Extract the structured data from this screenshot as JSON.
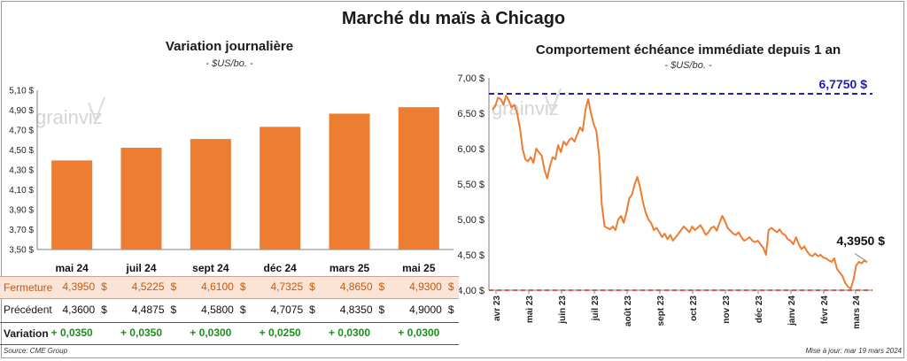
{
  "title": "Marché du maïs à Chicago",
  "left": {
    "title": "Variation journalière",
    "unit": "- $US/bo. -",
    "watermark": "grainviz"
  },
  "right": {
    "title": "Comportement  échéance immédiate depuis 1 an",
    "unit": "- $US/bo. -",
    "watermark": "grainviz"
  },
  "table": {
    "fermeture_label": "Fermeture",
    "precedent_label": "Précédent",
    "variation_label": "Variation",
    "dollar": "$",
    "fermeture": [
      "4,3950",
      "4,5225",
      "4,6100",
      "4,7325",
      "4,8650",
      "4,9300"
    ],
    "precedent": [
      "4,3600",
      "4,4875",
      "4,5800",
      "4,7075",
      "4,8350",
      "4,9000"
    ],
    "variation": [
      "+ 0,0350",
      "+ 0,0350",
      "+ 0,0300",
      "+ 0,0250",
      "+ 0,0300",
      "+ 0,0300"
    ]
  },
  "footer": {
    "source": "Source: CME Group",
    "update": "Mise à jour: mar 19 mars 2024"
  },
  "colors": {
    "bar": "#ED7D31",
    "line": "#ED7D31",
    "max_line": "#1F1FB4",
    "min_line": "#D42020",
    "variation_positive": "#1E8C1E",
    "fermeture_bg": "#FBE3D6",
    "fermeture_text": "#C55A11"
  },
  "chart_data": [
    {
      "type": "bar",
      "title": "Variation journalière",
      "ylabel": "- $US/bo. -",
      "categories": [
        "mai 24",
        "juil 24",
        "sept 24",
        "déc 24",
        "mars 25",
        "mai 25"
      ],
      "values": [
        4.395,
        4.5225,
        4.61,
        4.7325,
        4.865,
        4.93
      ],
      "ylim": [
        3.5,
        5.1
      ],
      "yticks": [
        "3,50 $",
        "3,70 $",
        "3,90 $",
        "4,10 $",
        "4,30 $",
        "4,50 $",
        "4,70 $",
        "4,90 $",
        "5,10 $"
      ],
      "grid": false
    },
    {
      "type": "line",
      "title": "Comportement  échéance immédiate depuis 1 an",
      "ylabel": "- $US/bo. -",
      "ylim": [
        4.0,
        7.0
      ],
      "yticks": [
        "4,00 $",
        "4,50 $",
        "5,00 $",
        "5,50 $",
        "6,00 $",
        "6,50 $",
        "7,00 $"
      ],
      "xticks": [
        "avr 23",
        "mai 23",
        "juin 23",
        "juil 23",
        "août 23",
        "sept 23",
        "oct 23",
        "nov 23",
        "déc 23",
        "janv 24",
        "févr 24",
        "mars 24"
      ],
      "series": [
        {
          "values": [
            6.55,
            6.6,
            6.72,
            6.7,
            6.62,
            6.75,
            6.68,
            6.58,
            6.62,
            6.5,
            6.3,
            6.0,
            5.85,
            5.82,
            5.88,
            5.8,
            6.0,
            5.95,
            5.9,
            5.7,
            5.58,
            5.75,
            5.88,
            5.85,
            6.05,
            5.95,
            6.1,
            6.05,
            6.12,
            6.15,
            6.1,
            6.2,
            6.3,
            6.25,
            6.55,
            6.7,
            6.5,
            6.35,
            6.25,
            5.9,
            5.2,
            4.9,
            4.88,
            4.86,
            4.9,
            4.85,
            5.0,
            5.05,
            4.95,
            5.1,
            5.3,
            5.35,
            5.5,
            5.6,
            5.45,
            5.25,
            5.1,
            5.0,
            4.95,
            4.85,
            4.88,
            4.82,
            4.75,
            4.8,
            4.72,
            4.78,
            4.7,
            4.75,
            4.8,
            4.85,
            4.9,
            4.86,
            4.82,
            4.9,
            4.85,
            4.88,
            4.92,
            4.86,
            4.78,
            4.82,
            4.88,
            4.9,
            4.84,
            4.95,
            5.05,
            4.98,
            4.88,
            4.84,
            4.8,
            4.78,
            4.82,
            4.75,
            4.7,
            4.72,
            4.75,
            4.7,
            4.68,
            4.7,
            4.65,
            4.6,
            4.5,
            4.85,
            4.88,
            4.85,
            4.82,
            4.86,
            4.8,
            4.78,
            4.72,
            4.7,
            4.65,
            4.75,
            4.65,
            4.58,
            4.62,
            4.55,
            4.5,
            4.48,
            4.52,
            4.48,
            4.5,
            4.46,
            4.45,
            4.42,
            4.4,
            4.45,
            4.3,
            4.25,
            4.2,
            4.1,
            4.05,
            4.02,
            4.15,
            4.35,
            4.4,
            4.38,
            4.42,
            4.395
          ]
        }
      ],
      "max": {
        "value": 6.775,
        "label": "6,7750 $"
      },
      "min": {
        "value": 4.0
      },
      "last": {
        "value": 4.395,
        "label": "4,3950 $"
      },
      "grid": false
    }
  ]
}
